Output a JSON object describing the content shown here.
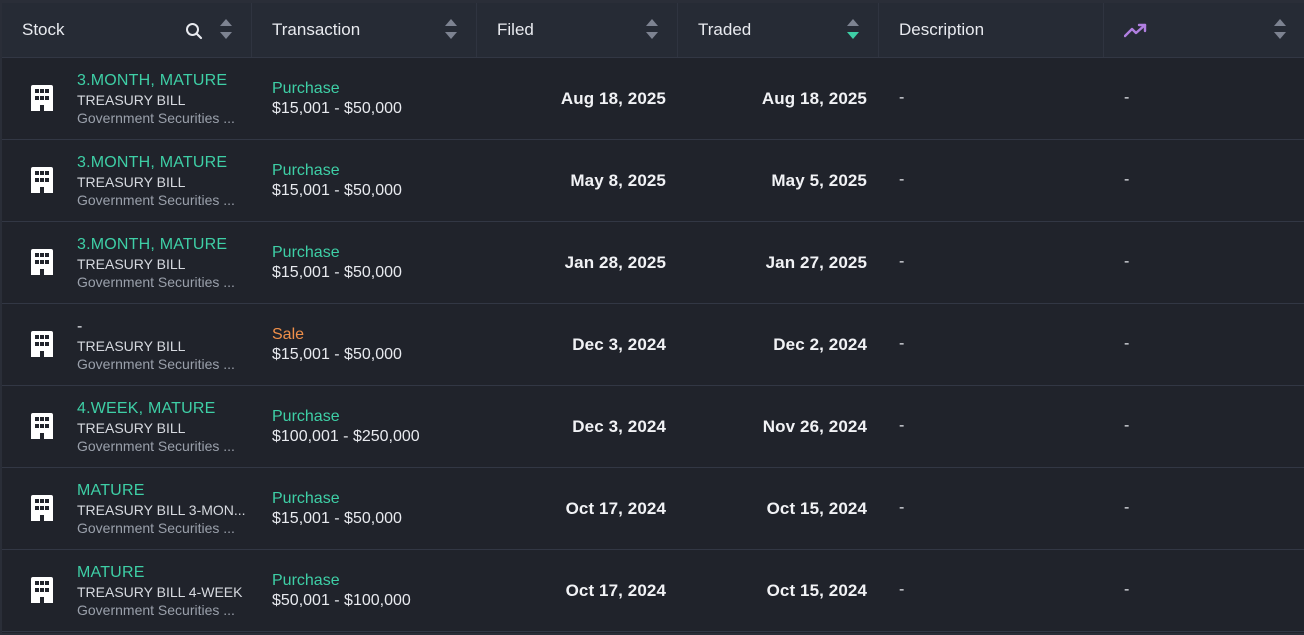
{
  "header": {
    "stock": "Stock",
    "transaction": "Transaction",
    "filed": "Filed",
    "traded": "Traded",
    "description": "Description",
    "trend_icon": "trending-up-icon",
    "search_icon": "search-icon",
    "active_sort": "traded",
    "active_sort_direction": "desc",
    "accent_color": "#3ecfa6",
    "trend_color": "#b07fe0"
  },
  "rows": [
    {
      "ticker": "3.MONTH, MATURE",
      "name": "TREASURY BILL",
      "sector": "Government Securities ...",
      "type": "Purchase",
      "amount": "$15,001 - $50,000",
      "filed": "Aug 18, 2025",
      "traded": "Aug 18, 2025",
      "description": "-",
      "extra": "-"
    },
    {
      "ticker": "3.MONTH, MATURE",
      "name": "TREASURY BILL",
      "sector": "Government Securities ...",
      "type": "Purchase",
      "amount": "$15,001 - $50,000",
      "filed": "May 8, 2025",
      "traded": "May 5, 2025",
      "description": "-",
      "extra": "-"
    },
    {
      "ticker": "3.MONTH, MATURE",
      "name": "TREASURY BILL",
      "sector": "Government Securities ...",
      "type": "Purchase",
      "amount": "$15,001 - $50,000",
      "filed": "Jan 28, 2025",
      "traded": "Jan 27, 2025",
      "description": "-",
      "extra": "-"
    },
    {
      "ticker": "-",
      "name": "TREASURY BILL",
      "sector": "Government Securities ...",
      "type": "Sale",
      "amount": "$15,001 - $50,000",
      "filed": "Dec 3, 2024",
      "traded": "Dec 2, 2024",
      "description": "-",
      "extra": "-"
    },
    {
      "ticker": "4.WEEK, MATURE",
      "name": "TREASURY BILL",
      "sector": "Government Securities ...",
      "type": "Purchase",
      "amount": "$100,001 - $250,000",
      "filed": "Dec 3, 2024",
      "traded": "Nov 26, 2024",
      "description": "-",
      "extra": "-"
    },
    {
      "ticker": "MATURE",
      "name": "TREASURY BILL 3-MON...",
      "sector": "Government Securities ...",
      "type": "Purchase",
      "amount": "$15,001 - $50,000",
      "filed": "Oct 17, 2024",
      "traded": "Oct 15, 2024",
      "description": "-",
      "extra": "-"
    },
    {
      "ticker": "MATURE",
      "name": "TREASURY BILL 4-WEEK",
      "sector": "Government Securities ...",
      "type": "Purchase",
      "amount": "$50,001 - $100,000",
      "filed": "Oct 17, 2024",
      "traded": "Oct 15, 2024",
      "description": "-",
      "extra": "-"
    }
  ]
}
